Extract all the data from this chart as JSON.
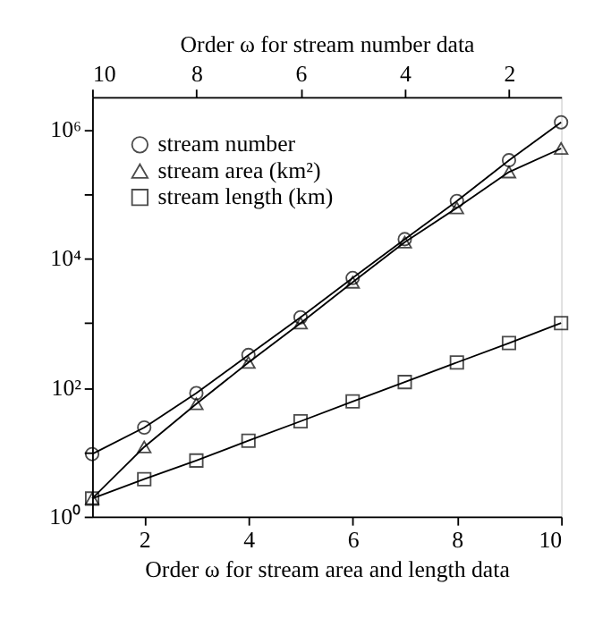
{
  "chart_data": {
    "type": "line",
    "xlabel": "Order ω for stream area and length data",
    "x2label": "Order ω for stream number data",
    "xlim": [
      1,
      10
    ],
    "xticks": [
      2,
      4,
      6,
      8,
      10
    ],
    "x2lim": [
      10,
      1
    ],
    "x2ticks": [
      10,
      8,
      6,
      4,
      2
    ],
    "ylim": [
      1,
      3200000
    ],
    "log": "y",
    "yticks": [
      {
        "value": 1,
        "label": "10⁰"
      },
      {
        "value": 10,
        "label": null
      },
      {
        "value": 100,
        "label": "10²"
      },
      {
        "value": 1000,
        "label": null
      },
      {
        "value": 10000,
        "label": "10⁴"
      },
      {
        "value": 100000,
        "label": null
      },
      {
        "value": 1000000,
        "label": "10⁶"
      }
    ],
    "grid": false,
    "legend": "top left",
    "line_style": "solid",
    "series": [
      {
        "name": "stream number",
        "color": "#000000",
        "marker": "circle",
        "axis": "x2",
        "x": [
          10,
          9,
          8,
          7,
          6,
          5,
          4,
          3,
          2,
          1
        ],
        "values": [
          9.3,
          24,
          82,
          320,
          1230,
          5000,
          20000,
          78000,
          335000,
          1300000
        ]
      },
      {
        "name": "stream area (km²)",
        "color": "#000000",
        "marker": "triangle",
        "x": [
          1,
          2,
          3,
          4,
          5,
          6,
          7,
          8,
          9,
          10
        ],
        "values": [
          1.9,
          12,
          56,
          245,
          1000,
          4300,
          18000,
          61000,
          220000,
          510000
        ]
      },
      {
        "name": "stream length (km)",
        "color": "#000000",
        "marker": "square",
        "x": [
          1,
          2,
          3,
          4,
          5,
          6,
          7,
          8,
          9,
          10
        ],
        "values": [
          1.9,
          3.8,
          7.4,
          15,
          30,
          61,
          122,
          245,
          490,
          1000
        ]
      }
    ]
  }
}
